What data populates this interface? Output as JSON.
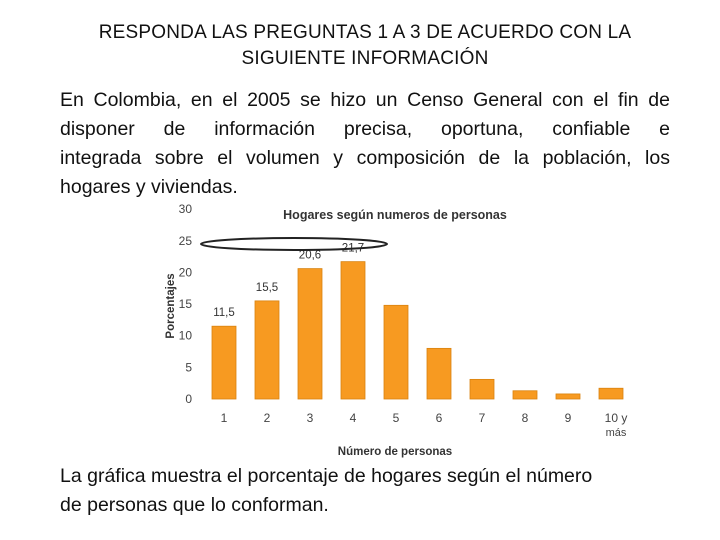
{
  "header": {
    "line1": "RESPONDA LAS PREGUNTAS 1 A 3 DE ACUERDO CON LA",
    "line2": "SIGUIENTE INFORMACIÓN"
  },
  "intro": {
    "line1": "En Colombia, en el 2005 se hizo un Censo General con el fin de",
    "line2": "disponer de información precisa, oportuna, confiable e",
    "line3": "integrada sobre el volumen y composición de la población, los",
    "line4": "hogares y viviendas."
  },
  "footer": {
    "line1": "La gráfica muestra el porcentaje de hogares según el número",
    "line2": "de personas que lo conforman."
  },
  "colors": {
    "bar": "#F79A21",
    "bar_edge": "#D9830F"
  },
  "chart_data": {
    "type": "bar",
    "title": "Hogares según numeros de personas",
    "xlabel": "Número de personas",
    "ylabel": "Porcentajes",
    "categories": [
      "1",
      "2",
      "3",
      "4",
      "5",
      "6",
      "7",
      "8",
      "9",
      "10 y más"
    ],
    "values": [
      11.5,
      15.5,
      20.6,
      21.7,
      14.8,
      8.0,
      3.1,
      1.3,
      0.8,
      1.7
    ],
    "labeled": [
      true,
      true,
      true,
      true,
      false,
      false,
      false,
      false,
      false,
      false
    ],
    "data_labels": [
      "11,5",
      "15,5",
      "20,6",
      "21,7",
      "",
      "",
      "",
      "",
      "",
      ""
    ],
    "yticks": [
      "0",
      "5",
      "10",
      "15",
      "20",
      "25",
      "30"
    ],
    "ylim": [
      0,
      30
    ],
    "grid": false,
    "annotation": "hand-drawn oval around the tops of bars 3 and 4"
  }
}
